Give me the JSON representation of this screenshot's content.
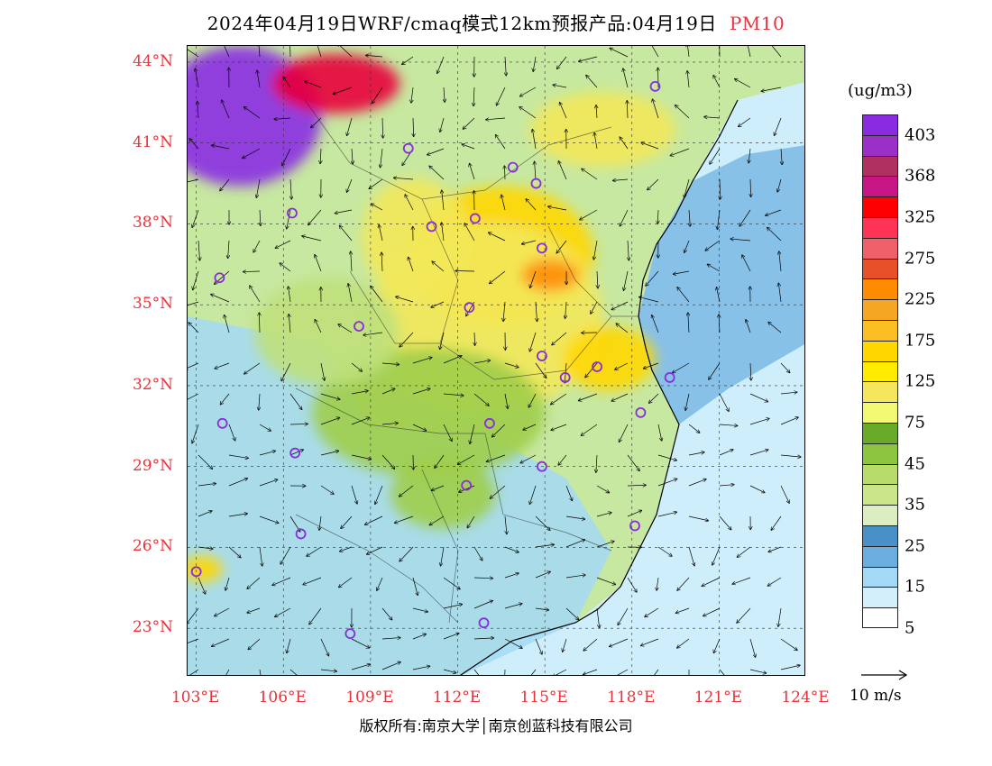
{
  "title": {
    "main": "2024年04月19日WRF/cmaq模式12km预报产品:04月19日",
    "variable": "PM10"
  },
  "axes": {
    "lat_labels": [
      "44°N",
      "41°N",
      "38°N",
      "35°N",
      "32°N",
      "29°N",
      "26°N",
      "23°N"
    ],
    "lat_values": [
      44,
      41,
      38,
      35,
      32,
      29,
      26,
      23
    ],
    "lon_labels": [
      "103°E",
      "106°E",
      "109°E",
      "112°E",
      "115°E",
      "118°E",
      "121°E",
      "124°E"
    ],
    "lon_values": [
      103,
      106,
      109,
      112,
      115,
      118,
      121,
      124
    ],
    "lon_range": [
      102.7,
      124.0
    ],
    "lat_range": [
      21.2,
      44.6
    ]
  },
  "colorbar": {
    "unit": "(ug/m3)",
    "labels": [
      "403",
      "368",
      "325",
      "275",
      "225",
      "175",
      "125",
      "75",
      "45",
      "35",
      "25",
      "15",
      "5"
    ],
    "colors": [
      "#8a2be2",
      "#9b30c8",
      "#b03060",
      "#c71585",
      "#ff0000",
      "#ff3355",
      "#f0606a",
      "#e8502a",
      "#ff8c00",
      "#f5a623",
      "#fbbf24",
      "#ffd700",
      "#ffec00",
      "#f6e65c",
      "#f2f871",
      "#6aaa2a",
      "#8cc63f",
      "#b8dc6b",
      "#cbe58a",
      "#dcedc1",
      "#4a90c8",
      "#6aaee0",
      "#a3d9f5",
      "#d4effc",
      "#ffffff"
    ]
  },
  "wind_reference": {
    "label": "10 m/s"
  },
  "monitoring_stations": [
    {
      "lon": 118.8,
      "lat": 43.1
    },
    {
      "lon": 110.3,
      "lat": 40.8
    },
    {
      "lon": 113.9,
      "lat": 40.1
    },
    {
      "lon": 114.7,
      "lat": 39.5
    },
    {
      "lon": 112.6,
      "lat": 38.2
    },
    {
      "lon": 111.1,
      "lat": 37.9
    },
    {
      "lon": 114.9,
      "lat": 37.1
    },
    {
      "lon": 106.3,
      "lat": 38.4
    },
    {
      "lon": 103.8,
      "lat": 36.0
    },
    {
      "lon": 112.4,
      "lat": 34.9
    },
    {
      "lon": 108.6,
      "lat": 34.2
    },
    {
      "lon": 114.9,
      "lat": 33.1
    },
    {
      "lon": 116.8,
      "lat": 32.7
    },
    {
      "lon": 115.7,
      "lat": 32.3
    },
    {
      "lon": 119.3,
      "lat": 32.3
    },
    {
      "lon": 118.3,
      "lat": 31.0
    },
    {
      "lon": 113.1,
      "lat": 30.6
    },
    {
      "lon": 103.9,
      "lat": 30.6
    },
    {
      "lon": 106.4,
      "lat": 29.5
    },
    {
      "lon": 114.9,
      "lat": 29.0
    },
    {
      "lon": 112.3,
      "lat": 28.3
    },
    {
      "lon": 118.1,
      "lat": 26.8
    },
    {
      "lon": 106.6,
      "lat": 26.5
    },
    {
      "lon": 103.0,
      "lat": 25.1
    },
    {
      "lon": 108.3,
      "lat": 22.8
    },
    {
      "lon": 112.9,
      "lat": 23.2
    }
  ],
  "concentration_patches": [
    {
      "lon": 104.5,
      "lat": 42.0,
      "rx": 2.8,
      "ry": 2.6,
      "level": "403"
    },
    {
      "lon": 107.8,
      "lat": 43.2,
      "rx": 2.2,
      "ry": 1.1,
      "level": "325"
    },
    {
      "lon": 113.5,
      "lat": 36.8,
      "rx": 3.2,
      "ry": 2.6,
      "level": "125"
    },
    {
      "lon": 113.0,
      "lat": 34.5,
      "rx": 4.0,
      "ry": 3.5,
      "level": "75"
    },
    {
      "lon": 115.2,
      "lat": 36.1,
      "rx": 1.0,
      "ry": 0.6,
      "level": "225"
    },
    {
      "lon": 117.2,
      "lat": 33.0,
      "rx": 1.6,
      "ry": 1.2,
      "level": "125"
    },
    {
      "lon": 110.5,
      "lat": 37.5,
      "rx": 1.8,
      "ry": 2.2,
      "level": "75"
    },
    {
      "lon": 111.0,
      "lat": 31.0,
      "rx": 4.0,
      "ry": 2.4,
      "level": "45"
    },
    {
      "lon": 107.5,
      "lat": 34.0,
      "rx": 2.5,
      "ry": 2.0,
      "level": "35"
    },
    {
      "lon": 117.0,
      "lat": 41.5,
      "rx": 2.5,
      "ry": 1.4,
      "level": "75"
    },
    {
      "lon": 103.2,
      "lat": 25.2,
      "rx": 0.7,
      "ry": 0.5,
      "level": "125"
    },
    {
      "lon": 111.5,
      "lat": 28.0,
      "rx": 1.8,
      "ry": 1.3,
      "level": "45"
    }
  ],
  "footer": "版权所有:南京大学│南京创蓝科技有限公司"
}
